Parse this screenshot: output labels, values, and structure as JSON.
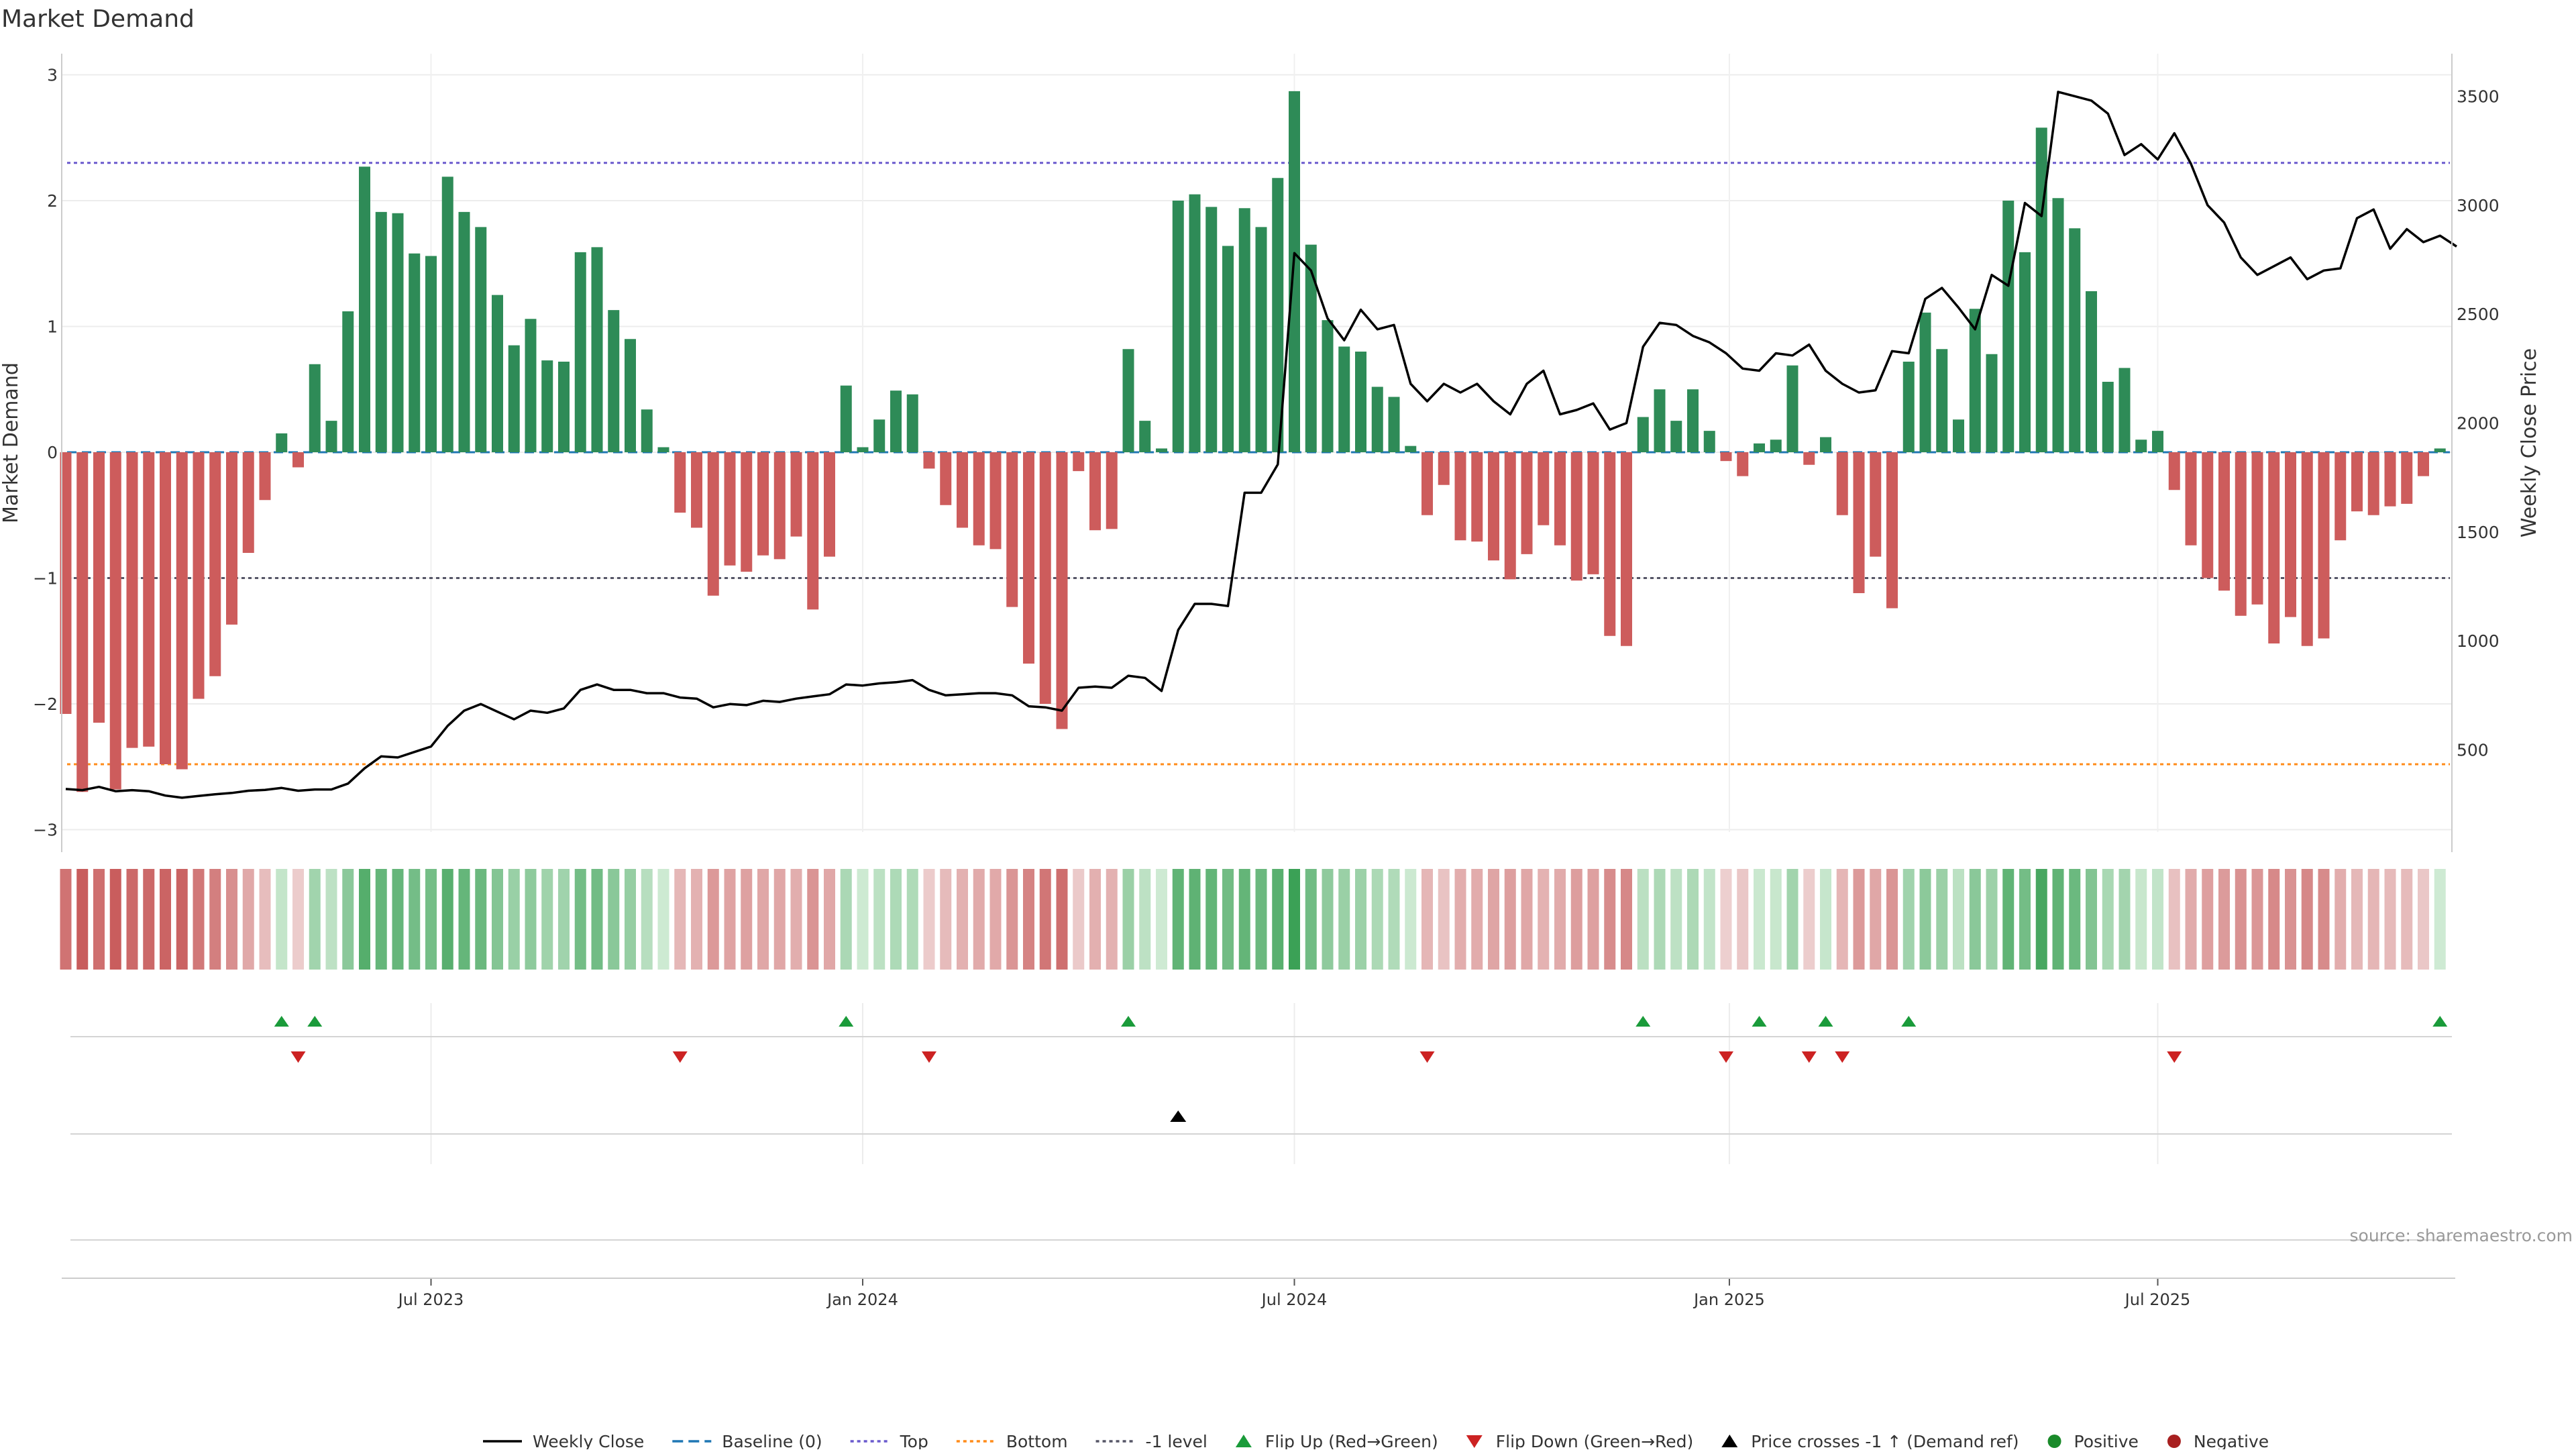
{
  "title": "Market Demand",
  "source": "source: sharemaestro.com",
  "chart_data": {
    "type": "bar",
    "title": "Market Demand",
    "ylabel_left": "Market Demand",
    "ylabel_right": "Weekly Close Price",
    "ylim_left": [
      -3.3,
      3.3
    ],
    "ylim_right": [
      200,
      3600
    ],
    "yticks_left": [
      3,
      2,
      1,
      0,
      -1,
      -2,
      -3
    ],
    "yticks_left_labels": [
      "3",
      "2",
      "1",
      "0",
      "−1",
      "−2",
      "−3"
    ],
    "yticks_right": [
      3500,
      3000,
      2500,
      2000,
      1500,
      1000,
      500
    ],
    "yticks_right_labels": [
      "3500",
      "3000",
      "2500",
      "2000",
      "1500",
      "1000",
      "500"
    ],
    "x_ticks": [
      "Jul 2023",
      "Jan 2024",
      "Jul 2024",
      "Jan 2025",
      "Jul 2025"
    ],
    "x_tick_week_index": [
      22,
      48,
      74,
      100.2,
      126
    ],
    "reference_lines": {
      "top": 2.3,
      "bottom": -2.48,
      "minus_one": -1.0,
      "baseline": 0
    },
    "series": [
      {
        "name": "Market Demand",
        "values": [
          -2.08,
          -2.7,
          -2.15,
          -2.68,
          -2.35,
          -2.34,
          -2.48,
          -2.52,
          -1.96,
          -1.78,
          -1.37,
          -0.8,
          -0.38,
          0.15,
          -0.12,
          0.7,
          0.25,
          1.12,
          2.27,
          1.91,
          1.9,
          1.58,
          1.56,
          2.19,
          1.91,
          1.79,
          1.25,
          0.85,
          1.06,
          0.73,
          0.72,
          1.59,
          1.63,
          1.13,
          0.9,
          0.34,
          0.04,
          -0.48,
          -0.6,
          -1.14,
          -0.9,
          -0.95,
          -0.82,
          -0.85,
          -0.67,
          -1.25,
          -0.83,
          0.53,
          0.04,
          0.26,
          0.49,
          0.46,
          -0.13,
          -0.42,
          -0.6,
          -0.74,
          -0.77,
          -1.23,
          -1.68,
          -2.0,
          -2.2,
          -0.15,
          -0.62,
          -0.61,
          0.82,
          0.25,
          0.03,
          2.0,
          2.05,
          1.95,
          1.64,
          1.94,
          1.79,
          2.18,
          2.87,
          1.65,
          1.05,
          0.84,
          0.8,
          0.52,
          0.44,
          0.05,
          -0.5,
          -0.26,
          -0.7,
          -0.71,
          -0.86,
          -1.01,
          -0.81,
          -0.58,
          -0.74,
          -1.02,
          -0.97,
          -1.46,
          -1.54,
          0.28,
          0.5,
          0.25,
          0.5,
          0.17,
          -0.07,
          -0.19,
          0.07,
          0.1,
          0.69,
          -0.1,
          0.12,
          -0.5,
          -1.12,
          -0.83,
          -1.24,
          0.72,
          1.11,
          0.82,
          0.26,
          1.14,
          0.78,
          2.0,
          1.59,
          2.58,
          2.02,
          1.78,
          1.28,
          0.56,
          0.67,
          0.1,
          0.17,
          -0.3,
          -0.74,
          -1.0,
          -1.1,
          -1.3,
          -1.21,
          -1.52,
          -1.31,
          -1.54,
          -1.48,
          -0.7,
          -0.47,
          -0.5,
          -0.43,
          -0.41,
          -0.19,
          0.03
        ]
      },
      {
        "name": "Weekly Close",
        "values": [
          320,
          315,
          330,
          310,
          315,
          310,
          290,
          280,
          288,
          296,
          302,
          312,
          316,
          325,
          312,
          318,
          318,
          345,
          415,
          470,
          465,
          490,
          515,
          610,
          680,
          710,
          675,
          640,
          680,
          670,
          690,
          775,
          800,
          775,
          775,
          760,
          760,
          740,
          735,
          695,
          710,
          705,
          725,
          720,
          735,
          745,
          755,
          800,
          795,
          805,
          810,
          820,
          775,
          750,
          755,
          760,
          760,
          750,
          700,
          695,
          680,
          785,
          790,
          785,
          840,
          830,
          770,
          1050,
          1170,
          1170,
          1160,
          1680,
          1680,
          1810,
          2780,
          2700,
          2480,
          2380,
          2520,
          2430,
          2450,
          2180,
          2100,
          2180,
          2140,
          2180,
          2100,
          2040,
          2180,
          2240,
          2040,
          2060,
          2090,
          1970,
          2000,
          2350,
          2460,
          2450,
          2400,
          2370,
          2320,
          2250,
          2240,
          2320,
          2310,
          2360,
          2240,
          2180,
          2140,
          2150,
          2330,
          2320,
          2570,
          2620,
          2530,
          2430,
          2680,
          2630,
          3010,
          2950,
          3520,
          3500,
          3480,
          3420,
          3230,
          3280,
          3210,
          3330,
          3190,
          3000,
          2920,
          2760,
          2680,
          2720,
          2760,
          2660,
          2700,
          2710,
          2940,
          2980,
          2800,
          2890,
          2830,
          2860,
          2810
        ]
      }
    ],
    "heatmap_strip": {
      "description_free": true
    },
    "flip_up_weeks": [
      13,
      15,
      47,
      64,
      95,
      102,
      106,
      111,
      143
    ],
    "flip_down_weeks": [
      14,
      37,
      52,
      82,
      100,
      105,
      107,
      127
    ],
    "price_cross_weeks": [
      67
    ],
    "colors": {
      "positive_bar": "#2e8b57",
      "negative_bar": "#cd5c5c",
      "price_line": "#000000",
      "baseline": "#1f77b4",
      "top_line": "#6a5acd",
      "bottom_line": "#ff8c1a",
      "minus_one_line": "#555566",
      "flip_up": "#1a9b3a",
      "flip_down": "#cc2222",
      "price_cross": "#000000",
      "positive_dot": "#1a8a2a",
      "negative_dot": "#a82020"
    },
    "legend": {
      "position": "bottom-center",
      "entries": [
        {
          "label": "Weekly Close",
          "kind": "solid-line",
          "color": "#000000"
        },
        {
          "label": "Baseline (0)",
          "kind": "dash-line",
          "color": "#1f77b4"
        },
        {
          "label": "Top",
          "kind": "dot-line",
          "color": "#6a5acd"
        },
        {
          "label": "Bottom",
          "kind": "dot-line",
          "color": "#ff8c1a"
        },
        {
          "label": "-1 level",
          "kind": "dot-line",
          "color": "#555566"
        },
        {
          "label": "Flip Up (Red→Green)",
          "kind": "tri-up",
          "color": "#1a9b3a"
        },
        {
          "label": "Flip Down (Green→Red)",
          "kind": "tri-down",
          "color": "#cc2222"
        },
        {
          "label": "Price crosses -1 ↑ (Demand ref)",
          "kind": "tri-up",
          "color": "#000000"
        },
        {
          "label": "Positive",
          "kind": "dot",
          "color": "#1a8a2a"
        },
        {
          "label": "Negative",
          "kind": "dot",
          "color": "#a82020"
        }
      ]
    }
  }
}
